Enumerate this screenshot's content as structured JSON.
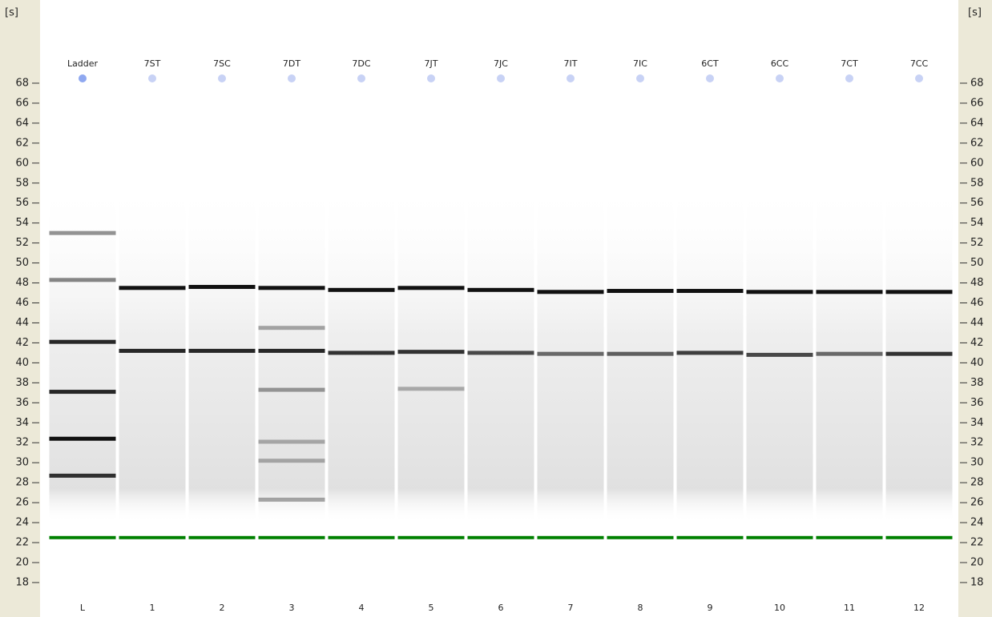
{
  "chart_data": {
    "type": "gel",
    "y_unit": "[s]",
    "ylim": [
      14.55,
      76.33
    ],
    "yticks": [
      18,
      20,
      22,
      24,
      26,
      28,
      30,
      32,
      34,
      36,
      38,
      40,
      42,
      44,
      46,
      48,
      50,
      52,
      54,
      56,
      58,
      60,
      62,
      64,
      66,
      68
    ],
    "marker_color": "#008000",
    "band_color": "#111111",
    "lanes": [
      {
        "name": "Ladder",
        "number": "L",
        "marker": 22.5,
        "bands": [
          {
            "position": 53.0,
            "intensity": 0.45
          },
          {
            "position": 48.3,
            "intensity": 0.5
          },
          {
            "position": 42.1,
            "intensity": 0.9
          },
          {
            "position": 37.1,
            "intensity": 0.9
          },
          {
            "position": 32.4,
            "intensity": 1
          },
          {
            "position": 28.7,
            "intensity": 0.85
          }
        ]
      },
      {
        "name": "7ST",
        "number": "1",
        "marker": 22.5,
        "bands": [
          {
            "position": 47.5,
            "intensity": 1
          },
          {
            "position": 41.2,
            "intensity": 0.9
          }
        ]
      },
      {
        "name": "7SC",
        "number": "2",
        "marker": 22.5,
        "bands": [
          {
            "position": 47.6,
            "intensity": 1
          },
          {
            "position": 41.2,
            "intensity": 0.9
          }
        ]
      },
      {
        "name": "7DT",
        "number": "3",
        "marker": 22.5,
        "bands": [
          {
            "position": 47.5,
            "intensity": 1
          },
          {
            "position": 43.5,
            "intensity": 0.35
          },
          {
            "position": 41.2,
            "intensity": 0.9
          },
          {
            "position": 37.3,
            "intensity": 0.4
          },
          {
            "position": 32.1,
            "intensity": 0.3
          },
          {
            "position": 30.2,
            "intensity": 0.3
          },
          {
            "position": 26.3,
            "intensity": 0.35
          }
        ]
      },
      {
        "name": "7DC",
        "number": "4",
        "marker": 22.5,
        "bands": [
          {
            "position": 47.3,
            "intensity": 1
          },
          {
            "position": 41.0,
            "intensity": 0.85
          }
        ]
      },
      {
        "name": "7JT",
        "number": "5",
        "marker": 22.5,
        "bands": [
          {
            "position": 47.5,
            "intensity": 1
          },
          {
            "position": 41.1,
            "intensity": 0.85
          },
          {
            "position": 37.4,
            "intensity": 0.3
          }
        ]
      },
      {
        "name": "7JC",
        "number": "6",
        "marker": 22.5,
        "bands": [
          {
            "position": 47.3,
            "intensity": 1
          },
          {
            "position": 41.0,
            "intensity": 0.75
          }
        ]
      },
      {
        "name": "7IT",
        "number": "7",
        "marker": 22.5,
        "bands": [
          {
            "position": 47.1,
            "intensity": 1
          },
          {
            "position": 40.9,
            "intensity": 0.6
          }
        ]
      },
      {
        "name": "7IC",
        "number": "8",
        "marker": 22.5,
        "bands": [
          {
            "position": 47.2,
            "intensity": 1
          },
          {
            "position": 40.9,
            "intensity": 0.65
          }
        ]
      },
      {
        "name": "6CT",
        "number": "9",
        "marker": 22.5,
        "bands": [
          {
            "position": 47.2,
            "intensity": 1
          },
          {
            "position": 41.0,
            "intensity": 0.8
          }
        ]
      },
      {
        "name": "6CC",
        "number": "10",
        "marker": 22.5,
        "bands": [
          {
            "position": 47.1,
            "intensity": 1
          },
          {
            "position": 40.8,
            "intensity": 0.75
          }
        ]
      },
      {
        "name": "7CT",
        "number": "11",
        "marker": 22.5,
        "bands": [
          {
            "position": 47.1,
            "intensity": 1
          },
          {
            "position": 40.9,
            "intensity": 0.6
          }
        ]
      },
      {
        "name": "7CC",
        "number": "12",
        "marker": 22.5,
        "bands": [
          {
            "position": 47.1,
            "intensity": 1
          },
          {
            "position": 40.9,
            "intensity": 0.85
          }
        ]
      }
    ]
  }
}
